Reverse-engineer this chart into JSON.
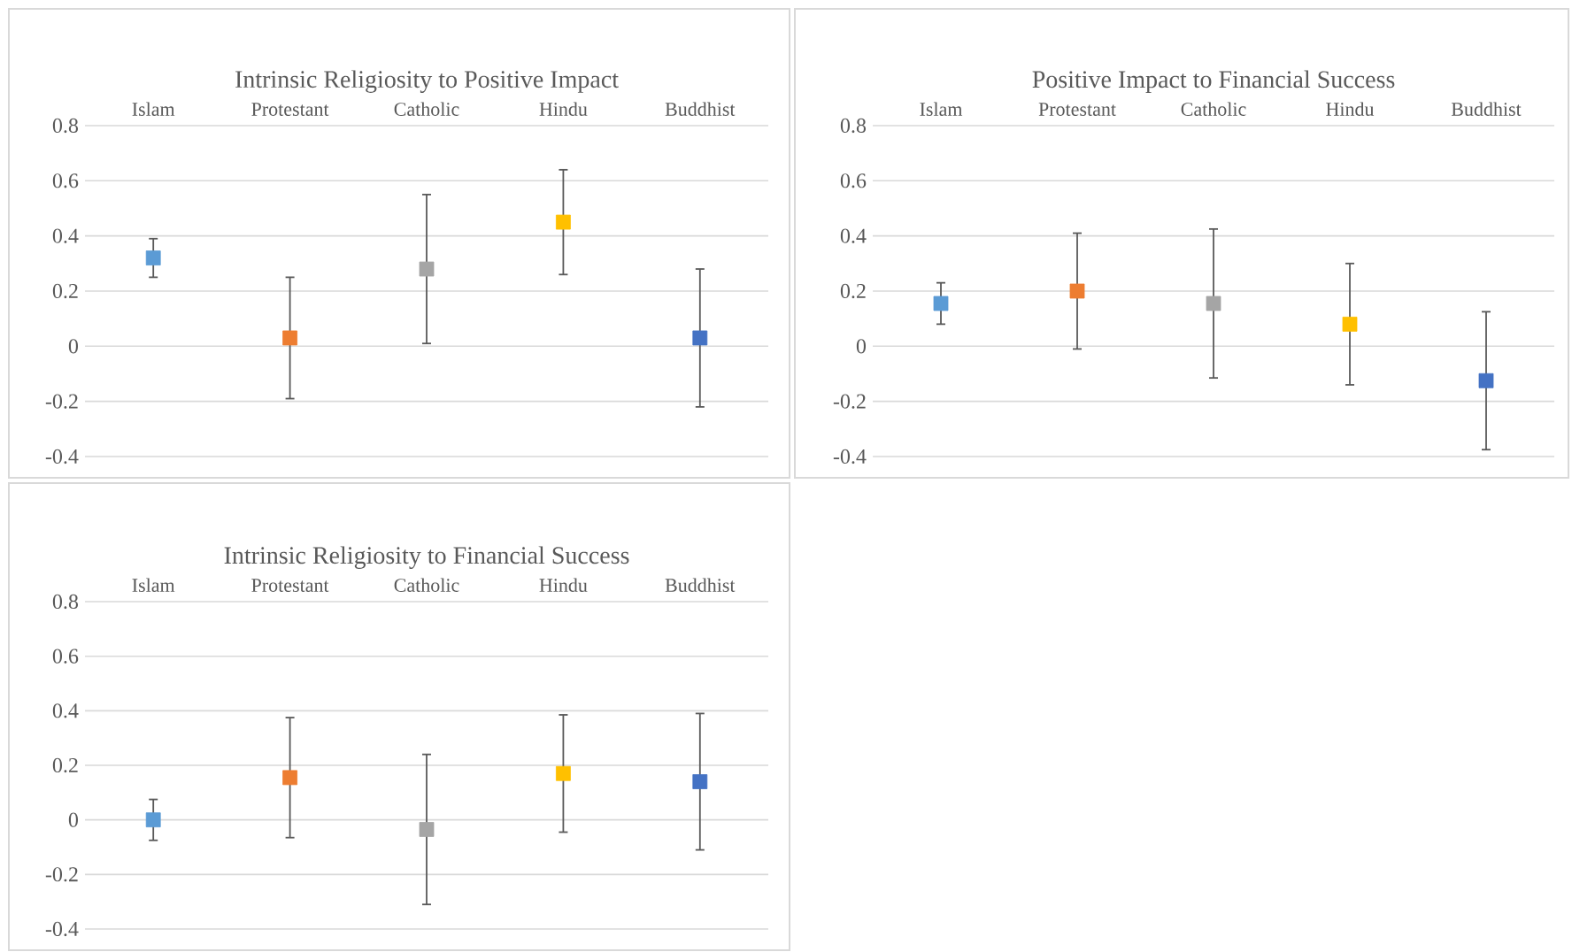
{
  "chart_data": [
    {
      "type": "scatter",
      "title": "Intrinsic Religiosity to Positive Impact",
      "categories": [
        "Islam",
        "Protestant",
        "Catholic",
        "Hindu",
        "Buddhist"
      ],
      "values": [
        0.32,
        0.03,
        0.28,
        0.45,
        0.03
      ],
      "errors": [
        0.07,
        0.22,
        0.27,
        0.19,
        0.25
      ],
      "colors": [
        "#5b9bd5",
        "#ed7d31",
        "#a5a5a5",
        "#ffc000",
        "#4472c4"
      ],
      "ylim": [
        -0.4,
        0.8
      ],
      "yticks": [
        -0.4,
        -0.2,
        0,
        0.2,
        0.4,
        0.6,
        0.8
      ],
      "grid": "y",
      "marker": "square"
    },
    {
      "type": "scatter",
      "title": "Positive Impact to Financial Success",
      "categories": [
        "Islam",
        "Protestant",
        "Catholic",
        "Hindu",
        "Buddhist"
      ],
      "values": [
        0.155,
        0.2,
        0.155,
        0.08,
        -0.125
      ],
      "errors": [
        0.075,
        0.21,
        0.27,
        0.22,
        0.25
      ],
      "colors": [
        "#5b9bd5",
        "#ed7d31",
        "#a5a5a5",
        "#ffc000",
        "#4472c4"
      ],
      "ylim": [
        -0.4,
        0.8
      ],
      "yticks": [
        -0.4,
        -0.2,
        0,
        0.2,
        0.4,
        0.6,
        0.8
      ],
      "grid": "y",
      "marker": "square"
    },
    {
      "type": "scatter",
      "title": "Intrinsic Religiosity to Financial Success",
      "categories": [
        "Islam",
        "Protestant",
        "Catholic",
        "Hindu",
        "Buddhist"
      ],
      "values": [
        0.0,
        0.155,
        -0.035,
        0.17,
        0.14
      ],
      "errors": [
        0.075,
        0.22,
        0.275,
        0.215,
        0.25
      ],
      "colors": [
        "#5b9bd5",
        "#ed7d31",
        "#a5a5a5",
        "#ffc000",
        "#4472c4"
      ],
      "ylim": [
        -0.4,
        0.8
      ],
      "yticks": [
        -0.4,
        -0.2,
        0,
        0.2,
        0.4,
        0.6,
        0.8
      ],
      "grid": "y",
      "marker": "square"
    }
  ]
}
